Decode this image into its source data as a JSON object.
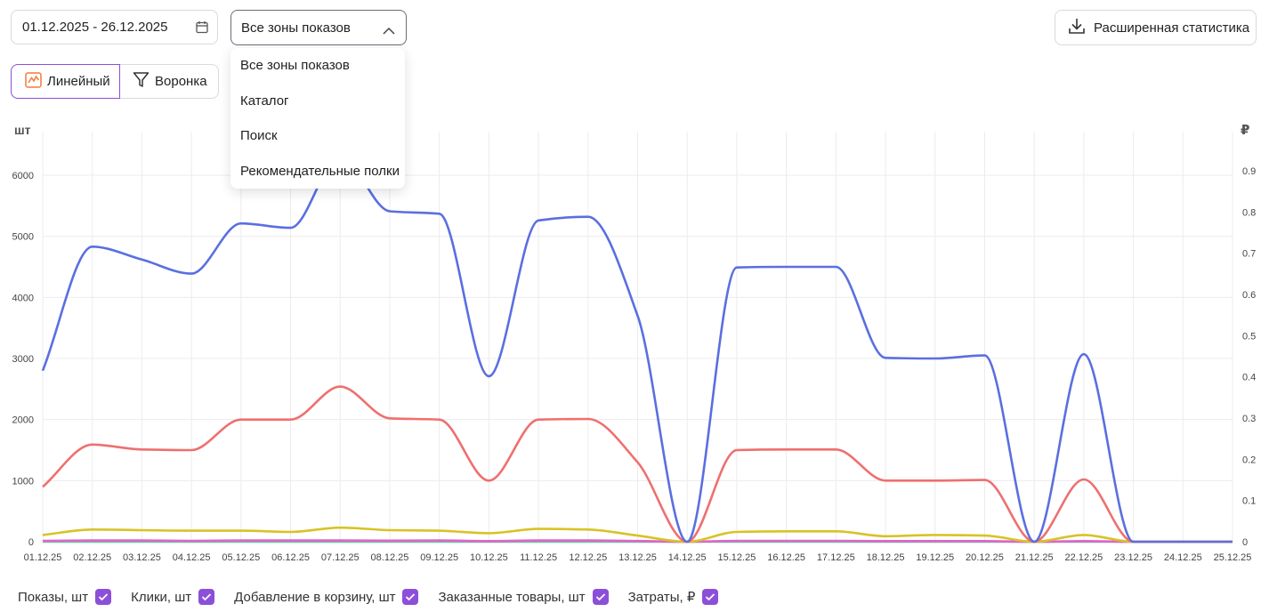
{
  "filters": {
    "date_range": "01.12.2025 - 26.12.2025",
    "zone_selected": "Все зоны показов",
    "zone_options": [
      "Все зоны показов",
      "Каталог",
      "Поиск",
      "Рекомендательные полки"
    ]
  },
  "toolbar": {
    "extended_stats_label": "Расширенная статистика",
    "view_linear_label": "Линейный",
    "view_funnel_label": "Воронка"
  },
  "colors": {
    "accent": "#8c4fd9",
    "impressions": "#5a6fe0",
    "clicks": "#ef6f6f",
    "cart": "#d8c326",
    "orders": "#e163c9",
    "spend": "#67c6a0"
  },
  "chart_data": {
    "type": "line",
    "left_axis_label": "шт",
    "right_axis_label": "₽",
    "ylim_left": [
      0,
      6000
    ],
    "ylim_right": [
      0,
      0.9
    ],
    "left_ticks": [
      0,
      1000,
      2000,
      3000,
      4000,
      5000,
      6000
    ],
    "right_ticks": [
      0,
      0.1,
      0.2,
      0.3,
      0.4,
      0.5,
      0.6,
      0.7,
      0.8,
      0.9
    ],
    "categories": [
      "01.12.25",
      "02.12.25",
      "03.12.25",
      "04.12.25",
      "05.12.25",
      "06.12.25",
      "07.12.25",
      "08.12.25",
      "09.12.25",
      "10.12.25",
      "11.12.25",
      "12.12.25",
      "13.12.25",
      "14.12.25",
      "15.12.25",
      "16.12.25",
      "17.12.25",
      "18.12.25",
      "19.12.25",
      "20.12.25",
      "21.12.25",
      "22.12.25",
      "23.12.25",
      "24.12.25",
      "25.12.25"
    ],
    "grid": true,
    "series": [
      {
        "name": "Показы, шт",
        "axis": "left",
        "values": [
          2800,
          4830,
          4620,
          4390,
          5210,
          5140,
          6310,
          5410,
          5370,
          2710,
          5260,
          5320,
          3700,
          0,
          4490,
          4500,
          4500,
          3010,
          3000,
          3050,
          0,
          3070,
          0,
          0,
          0
        ]
      },
      {
        "name": "Клики, шт",
        "axis": "left",
        "values": [
          900,
          1590,
          1510,
          1500,
          2000,
          2000,
          2540,
          2020,
          2000,
          1000,
          2000,
          2010,
          1300,
          0,
          1500,
          1510,
          1510,
          1000,
          1000,
          1010,
          0,
          1020,
          0,
          0,
          0
        ]
      },
      {
        "name": "Добавление в корзину, шт",
        "axis": "left",
        "values": [
          110,
          200,
          190,
          180,
          180,
          160,
          230,
          190,
          180,
          140,
          210,
          200,
          100,
          0,
          160,
          170,
          170,
          90,
          110,
          100,
          0,
          110,
          0,
          0,
          0
        ]
      },
      {
        "name": "Заказанные товары, шт",
        "axis": "left",
        "values": [
          15,
          20,
          20,
          15,
          20,
          20,
          20,
          18,
          20,
          10,
          20,
          20,
          12,
          0,
          15,
          15,
          15,
          10,
          10,
          10,
          0,
          10,
          0,
          0,
          0
        ]
      },
      {
        "name": "Затраты, ₽",
        "axis": "right",
        "values": [
          0,
          0,
          0,
          0,
          0,
          0,
          0,
          0,
          0,
          0,
          0,
          0,
          0,
          0,
          0,
          0,
          0,
          0,
          0,
          0,
          0,
          0,
          0,
          0,
          0
        ]
      }
    ]
  },
  "legend": [
    {
      "label": "Показы, шт",
      "checked": true
    },
    {
      "label": "Клики, шт",
      "checked": true
    },
    {
      "label": "Добавление в корзину, шт",
      "checked": true
    },
    {
      "label": "Заказанные товары, шт",
      "checked": true
    },
    {
      "label": "Затраты, ₽",
      "checked": true
    }
  ]
}
